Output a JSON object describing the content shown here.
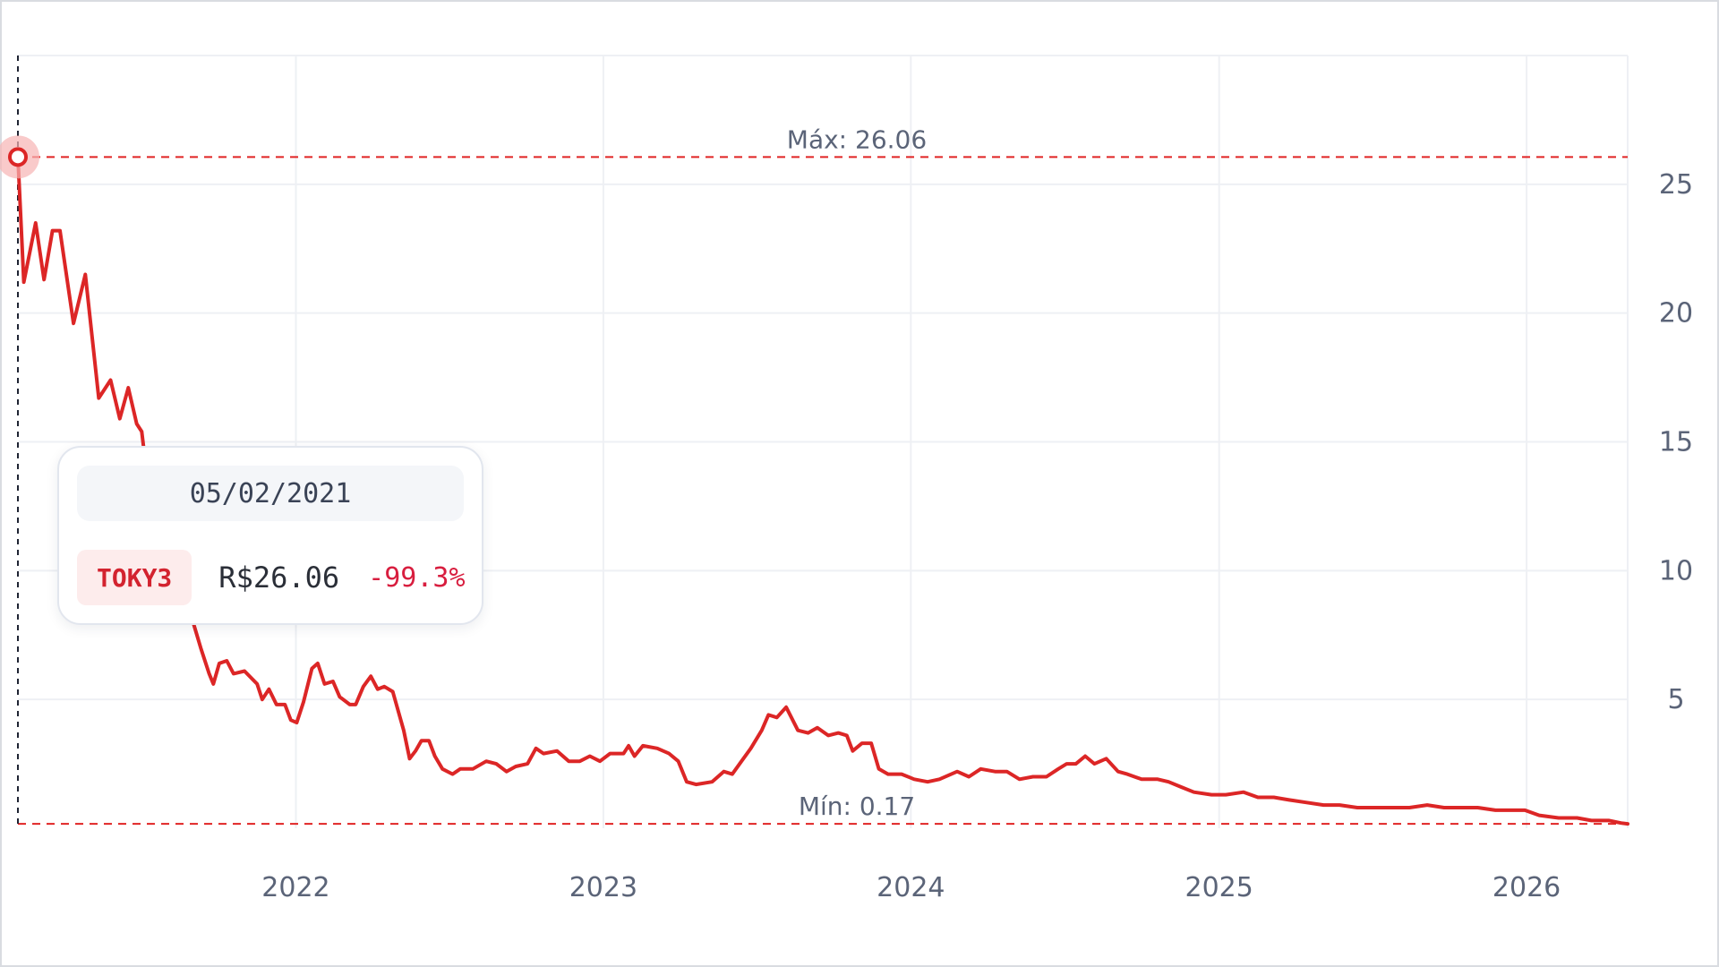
{
  "chart_data": {
    "type": "line",
    "title": "",
    "xlabel": "",
    "ylabel": "",
    "x_ticks": [
      "2022",
      "2023",
      "2024",
      "2025",
      "2026"
    ],
    "y_ticks": [
      5,
      10,
      15,
      20,
      25
    ],
    "xlim": [
      "2021-02-05",
      "2026-05-01"
    ],
    "ylim": [
      0,
      30
    ],
    "grid": true,
    "y_axis_position": "right",
    "line_color": "#dc2626",
    "reference_lines": {
      "max": {
        "label": "Máx: 26.06",
        "value": 26.06
      },
      "min": {
        "label": "Mín: 0.17",
        "value": 0.17
      }
    },
    "series": [
      {
        "name": "TOKY3",
        "points": [
          [
            "2021-02-05",
            26.06
          ],
          [
            "2021-02-12",
            21.2
          ],
          [
            "2021-02-26",
            23.5
          ],
          [
            "2021-03-08",
            21.3
          ],
          [
            "2021-03-18",
            23.2
          ],
          [
            "2021-03-27",
            23.2
          ],
          [
            "2021-04-12",
            19.6
          ],
          [
            "2021-04-26",
            21.5
          ],
          [
            "2021-05-12",
            16.7
          ],
          [
            "2021-05-26",
            17.4
          ],
          [
            "2021-06-06",
            15.9
          ],
          [
            "2021-06-16",
            17.1
          ],
          [
            "2021-06-26",
            15.7
          ],
          [
            "2021-07-02",
            15.4
          ],
          [
            "2021-07-06",
            14.3
          ],
          [
            "2021-07-12",
            13.8
          ],
          [
            "2021-07-22",
            12.6
          ],
          [
            "2021-08-01",
            11.4
          ],
          [
            "2021-08-11",
            10.3
          ],
          [
            "2021-08-21",
            9.2
          ],
          [
            "2021-08-31",
            8.1
          ],
          [
            "2021-09-10",
            7.0
          ],
          [
            "2021-09-20",
            6.0
          ],
          [
            "2021-09-25",
            5.6
          ],
          [
            "2021-10-02",
            6.4
          ],
          [
            "2021-10-11",
            6.5
          ],
          [
            "2021-10-19",
            6.0
          ],
          [
            "2021-11-01",
            6.1
          ],
          [
            "2021-11-16",
            5.6
          ],
          [
            "2021-11-22",
            5.0
          ],
          [
            "2021-11-30",
            5.4
          ],
          [
            "2021-12-09",
            4.8
          ],
          [
            "2021-12-19",
            4.8
          ],
          [
            "2021-12-26",
            4.2
          ],
          [
            "2022-01-02",
            4.1
          ],
          [
            "2022-01-10",
            4.9
          ],
          [
            "2022-01-20",
            6.2
          ],
          [
            "2022-01-27",
            6.4
          ],
          [
            "2022-02-04",
            5.6
          ],
          [
            "2022-02-14",
            5.7
          ],
          [
            "2022-02-22",
            5.1
          ],
          [
            "2022-03-06",
            4.8
          ],
          [
            "2022-03-13",
            4.8
          ],
          [
            "2022-03-22",
            5.5
          ],
          [
            "2022-03-31",
            5.9
          ],
          [
            "2022-04-08",
            5.4
          ],
          [
            "2022-04-16",
            5.5
          ],
          [
            "2022-04-26",
            5.3
          ],
          [
            "2022-05-09",
            3.8
          ],
          [
            "2022-05-16",
            2.7
          ],
          [
            "2022-05-23",
            3.0
          ],
          [
            "2022-05-30",
            3.4
          ],
          [
            "2022-06-08",
            3.4
          ],
          [
            "2022-06-15",
            2.8
          ],
          [
            "2022-06-24",
            2.3
          ],
          [
            "2022-07-06",
            2.1
          ],
          [
            "2022-07-15",
            2.3
          ],
          [
            "2022-07-30",
            2.3
          ],
          [
            "2022-08-15",
            2.6
          ],
          [
            "2022-08-27",
            2.5
          ],
          [
            "2022-09-08",
            2.2
          ],
          [
            "2022-09-19",
            2.4
          ],
          [
            "2022-10-03",
            2.5
          ],
          [
            "2022-10-13",
            3.1
          ],
          [
            "2022-10-22",
            2.9
          ],
          [
            "2022-11-07",
            3.0
          ],
          [
            "2022-11-21",
            2.6
          ],
          [
            "2022-12-04",
            2.6
          ],
          [
            "2022-12-16",
            2.8
          ],
          [
            "2022-12-28",
            2.6
          ],
          [
            "2023-01-09",
            2.9
          ],
          [
            "2023-01-25",
            2.9
          ],
          [
            "2023-01-31",
            3.2
          ],
          [
            "2023-02-07",
            2.8
          ],
          [
            "2023-02-17",
            3.2
          ],
          [
            "2023-03-06",
            3.1
          ],
          [
            "2023-03-20",
            2.9
          ],
          [
            "2023-03-31",
            2.6
          ],
          [
            "2023-04-10",
            1.8
          ],
          [
            "2023-04-21",
            1.7
          ],
          [
            "2023-05-10",
            1.8
          ],
          [
            "2023-05-24",
            2.2
          ],
          [
            "2023-06-03",
            2.1
          ],
          [
            "2023-06-14",
            2.6
          ],
          [
            "2023-06-25",
            3.1
          ],
          [
            "2023-07-08",
            3.8
          ],
          [
            "2023-07-16",
            4.4
          ],
          [
            "2023-07-26",
            4.3
          ],
          [
            "2023-08-06",
            4.7
          ],
          [
            "2023-08-20",
            3.8
          ],
          [
            "2023-09-01",
            3.7
          ],
          [
            "2023-09-12",
            3.9
          ],
          [
            "2023-09-25",
            3.6
          ],
          [
            "2023-10-07",
            3.7
          ],
          [
            "2023-10-17",
            3.6
          ],
          [
            "2023-10-24",
            3.0
          ],
          [
            "2023-11-04",
            3.3
          ],
          [
            "2023-11-15",
            3.3
          ],
          [
            "2023-11-24",
            2.3
          ],
          [
            "2023-12-05",
            2.1
          ],
          [
            "2023-12-21",
            2.1
          ],
          [
            "2024-01-05",
            1.9
          ],
          [
            "2024-01-21",
            1.8
          ],
          [
            "2024-02-04",
            1.9
          ],
          [
            "2024-02-25",
            2.2
          ],
          [
            "2024-03-10",
            2.0
          ],
          [
            "2024-03-24",
            2.3
          ],
          [
            "2024-04-10",
            2.2
          ],
          [
            "2024-04-24",
            2.2
          ],
          [
            "2024-05-09",
            1.9
          ],
          [
            "2024-05-25",
            2.0
          ],
          [
            "2024-06-10",
            2.0
          ],
          [
            "2024-06-24",
            2.3
          ],
          [
            "2024-07-04",
            2.5
          ],
          [
            "2024-07-15",
            2.5
          ],
          [
            "2024-07-26",
            2.8
          ],
          [
            "2024-08-06",
            2.5
          ],
          [
            "2024-08-20",
            2.7
          ],
          [
            "2024-09-03",
            2.2
          ],
          [
            "2024-09-14",
            2.1
          ],
          [
            "2024-10-01",
            1.9
          ],
          [
            "2024-10-20",
            1.9
          ],
          [
            "2024-11-02",
            1.8
          ],
          [
            "2024-11-17",
            1.6
          ],
          [
            "2024-12-02",
            1.4
          ],
          [
            "2024-12-23",
            1.3
          ],
          [
            "2025-01-09",
            1.3
          ],
          [
            "2025-01-30",
            1.4
          ],
          [
            "2025-02-16",
            1.2
          ],
          [
            "2025-03-07",
            1.2
          ],
          [
            "2025-03-25",
            1.1
          ],
          [
            "2025-04-14",
            1.0
          ],
          [
            "2025-05-05",
            0.9
          ],
          [
            "2025-05-24",
            0.9
          ],
          [
            "2025-06-14",
            0.8
          ],
          [
            "2025-07-04",
            0.8
          ],
          [
            "2025-07-25",
            0.8
          ],
          [
            "2025-08-15",
            0.8
          ],
          [
            "2025-09-05",
            0.9
          ],
          [
            "2025-09-25",
            0.8
          ],
          [
            "2025-10-14",
            0.8
          ],
          [
            "2025-11-04",
            0.8
          ],
          [
            "2025-11-25",
            0.7
          ],
          [
            "2025-12-11",
            0.7
          ],
          [
            "2025-12-30",
            0.7
          ],
          [
            "2026-01-16",
            0.5
          ],
          [
            "2026-02-08",
            0.4
          ],
          [
            "2026-03-02",
            0.4
          ],
          [
            "2026-03-19",
            0.3
          ],
          [
            "2026-04-09",
            0.3
          ],
          [
            "2026-04-23",
            0.2
          ],
          [
            "2026-05-01",
            0.17
          ]
        ]
      }
    ],
    "hover": {
      "date": "2021-02-05",
      "value": 26.06
    }
  },
  "tooltip": {
    "date": "05/02/2021",
    "ticker": "TOKY3",
    "price": "R$26.06",
    "change": "-99.3%"
  }
}
